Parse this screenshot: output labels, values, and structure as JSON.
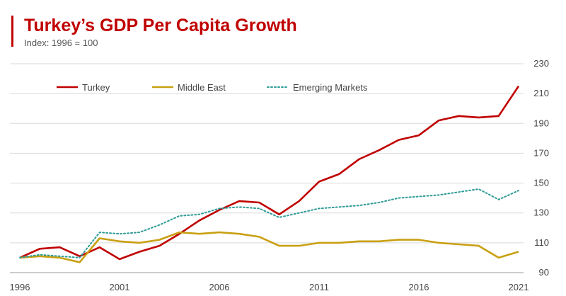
{
  "header": {
    "title": "Turkey’s GDP Per Capita Growth",
    "subtitle": "Index: 1996 = 100"
  },
  "chart_data": {
    "type": "line",
    "title": "Turkey’s GDP Per Capita Growth",
    "subtitle": "Index: 1996 = 100",
    "xlabel": "",
    "ylabel": "",
    "x": [
      1996,
      1997,
      1998,
      1999,
      2000,
      2001,
      2002,
      2003,
      2004,
      2005,
      2006,
      2007,
      2008,
      2009,
      2010,
      2011,
      2012,
      2013,
      2014,
      2015,
      2016,
      2017,
      2018,
      2019,
      2020,
      2021
    ],
    "xticks": [
      1996,
      2001,
      2006,
      2011,
      2016,
      2021
    ],
    "yticks": [
      90,
      110,
      130,
      150,
      170,
      190,
      210,
      230
    ],
    "ylim": [
      90,
      230
    ],
    "xlim": [
      1996,
      2021
    ],
    "grid": "horizontal",
    "legend_position": "top-left",
    "series": [
      {
        "name": "Turkey",
        "color": "#c00000",
        "style": "solid",
        "values": [
          100,
          106,
          107,
          101,
          107,
          99,
          104,
          108,
          116,
          125,
          132,
          138,
          137,
          129,
          138,
          151,
          156,
          166,
          172,
          179,
          182,
          192,
          195,
          194,
          195,
          215
        ]
      },
      {
        "name": "Middle East",
        "color": "#c9a012",
        "style": "solid",
        "values": [
          100,
          101,
          100,
          97,
          113,
          111,
          110,
          112,
          117,
          116,
          117,
          116,
          114,
          108,
          108,
          110,
          110,
          111,
          111,
          112,
          112,
          110,
          109,
          108,
          100,
          104
        ]
      },
      {
        "name": "Emerging Markets",
        "color": "#2e9b96",
        "style": "dotted",
        "values": [
          100,
          102,
          101,
          100,
          117,
          116,
          117,
          122,
          128,
          129,
          133,
          134,
          133,
          127,
          130,
          133,
          134,
          135,
          137,
          140,
          141,
          142,
          144,
          146,
          139,
          145
        ]
      }
    ]
  }
}
